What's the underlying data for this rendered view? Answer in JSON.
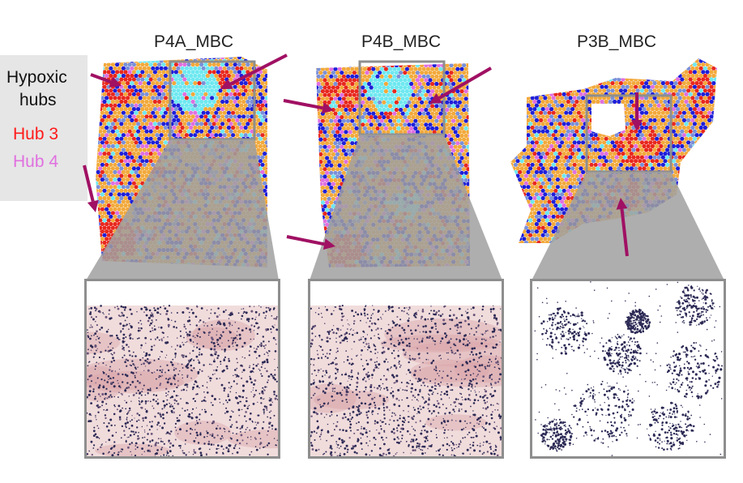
{
  "panels": [
    {
      "title": "P4A_MBC",
      "histology": "pink"
    },
    {
      "title": "P4B_MBC",
      "histology": "pink"
    },
    {
      "title": "P3B_MBC",
      "histology": "white"
    }
  ],
  "legend": {
    "label_line1": "Hypoxic",
    "label_line2": "hubs",
    "hub3": "Hub 3",
    "hub4": "Hub 4"
  },
  "colors": {
    "hub3": "#ff1a1a",
    "hub4": "#e070e0",
    "arrow": "#a01063",
    "frame": "#8e8e8e",
    "orange": "#f2a93b",
    "blue": "#1f1fd8",
    "cyan": "#6ee8f0",
    "steel": "#7a90d8",
    "red": "#e8281e"
  }
}
